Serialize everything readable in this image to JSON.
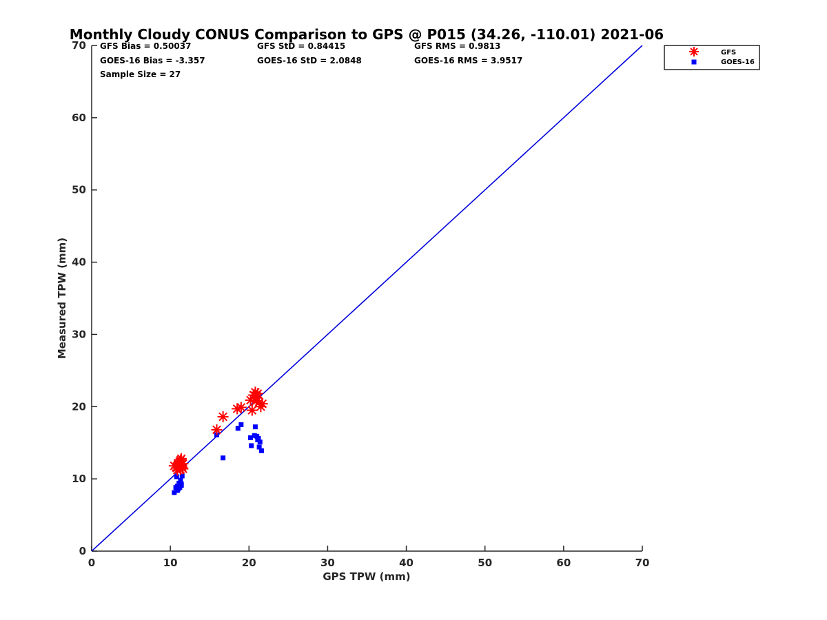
{
  "chart_data": {
    "type": "scatter",
    "title": "Monthly Cloudy CONUS Comparison to GPS @ P015 (34.26, -110.01) 2021-06",
    "xlabel": "GPS TPW (mm)",
    "ylabel": "Measured TPW (mm)",
    "xlim": [
      0,
      70
    ],
    "ylim": [
      0,
      70
    ],
    "xticks": [
      0,
      10,
      20,
      30,
      40,
      50,
      60,
      70
    ],
    "yticks": [
      0,
      10,
      20,
      30,
      40,
      50,
      60,
      70
    ],
    "grid": false,
    "legend_position": "top-right",
    "stats": {
      "gfs_bias": "GFS Bias = 0.50037",
      "gfs_std": "GFS StD = 0.84415",
      "gfs_rms": "GFS RMS = 0.9813",
      "goes_bias": "GOES-16 Bias = -3.357",
      "goes_std": "GOES-16 StD = 2.0848",
      "goes_rms": "GOES-16 RMS = 3.9517",
      "sample_size": "Sample Size = 27"
    },
    "reference_line": {
      "x": [
        0,
        70
      ],
      "y": [
        0,
        70
      ],
      "color": "#0000dd"
    },
    "series": [
      {
        "name": "GFS",
        "marker": "asterisk",
        "color": "#ff0000",
        "points": [
          [
            10.5,
            11.8
          ],
          [
            10.8,
            11.5
          ],
          [
            11.0,
            12.2
          ],
          [
            11.1,
            11.9
          ],
          [
            11.2,
            12.4
          ],
          [
            11.3,
            11.3
          ],
          [
            11.4,
            12.8
          ],
          [
            11.5,
            11.6
          ],
          [
            11.6,
            12.1
          ],
          [
            11.3,
            12.6
          ],
          [
            10.9,
            11.2
          ],
          [
            11.0,
            12.0
          ],
          [
            11.6,
            11.4
          ],
          [
            15.9,
            16.8
          ],
          [
            16.7,
            18.6
          ],
          [
            18.5,
            19.7
          ],
          [
            19.0,
            19.9
          ],
          [
            20.2,
            20.9
          ],
          [
            20.4,
            19.5
          ],
          [
            20.6,
            21.6
          ],
          [
            20.8,
            22.0
          ],
          [
            21.0,
            21.2
          ],
          [
            21.1,
            21.8
          ],
          [
            21.3,
            20.6
          ],
          [
            21.5,
            20.0
          ],
          [
            21.7,
            20.4
          ],
          [
            20.9,
            20.8
          ]
        ]
      },
      {
        "name": "GOES-16",
        "marker": "square",
        "color": "#0000ff",
        "points": [
          [
            10.5,
            8.1
          ],
          [
            10.7,
            8.8
          ],
          [
            10.8,
            10.3
          ],
          [
            10.9,
            9.0
          ],
          [
            11.0,
            8.6
          ],
          [
            11.1,
            9.4
          ],
          [
            11.2,
            8.8
          ],
          [
            11.3,
            9.6
          ],
          [
            11.4,
            9.3
          ],
          [
            11.5,
            10.4
          ],
          [
            10.9,
            8.4
          ],
          [
            11.3,
            9.8
          ],
          [
            11.4,
            9.1
          ],
          [
            15.9,
            16.1
          ],
          [
            16.7,
            12.9
          ],
          [
            18.6,
            17.0
          ],
          [
            19.0,
            17.5
          ],
          [
            20.2,
            15.7
          ],
          [
            20.3,
            14.6
          ],
          [
            20.7,
            16.0
          ],
          [
            20.8,
            17.2
          ],
          [
            21.0,
            15.9
          ],
          [
            21.1,
            15.4
          ],
          [
            21.3,
            14.4
          ],
          [
            21.4,
            15.1
          ],
          [
            21.6,
            13.9
          ],
          [
            21.2,
            15.6
          ]
        ]
      }
    ]
  }
}
